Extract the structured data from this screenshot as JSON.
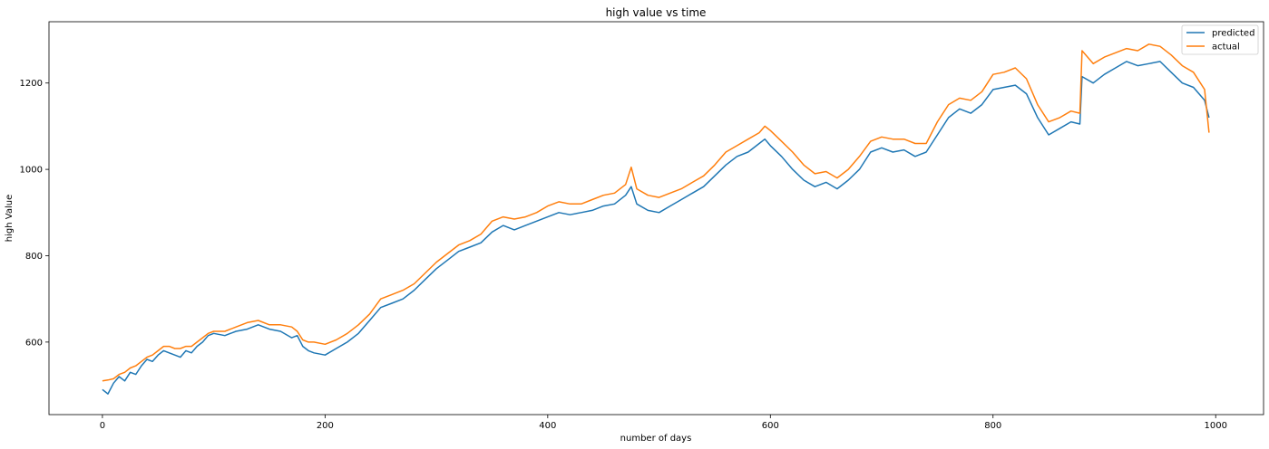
{
  "chart_data": {
    "type": "line",
    "title": "high value vs time",
    "xlabel": "number of days",
    "ylabel": "high Value",
    "xlim": [
      -48,
      1043
    ],
    "ylim": [
      432,
      1342
    ],
    "xticks": [
      0,
      200,
      400,
      600,
      800,
      1000
    ],
    "yticks": [
      600,
      800,
      1000,
      1200
    ],
    "grid": false,
    "legend_position": "top-right",
    "series": [
      {
        "name": "predicted",
        "color": "#1f77b4",
        "points": [
          [
            0,
            490
          ],
          [
            5,
            480
          ],
          [
            10,
            505
          ],
          [
            15,
            520
          ],
          [
            20,
            510
          ],
          [
            25,
            530
          ],
          [
            30,
            525
          ],
          [
            35,
            545
          ],
          [
            40,
            560
          ],
          [
            45,
            555
          ],
          [
            50,
            570
          ],
          [
            55,
            580
          ],
          [
            60,
            575
          ],
          [
            65,
            570
          ],
          [
            70,
            565
          ],
          [
            75,
            580
          ],
          [
            80,
            575
          ],
          [
            85,
            590
          ],
          [
            90,
            600
          ],
          [
            95,
            615
          ],
          [
            100,
            620
          ],
          [
            110,
            615
          ],
          [
            120,
            625
          ],
          [
            130,
            630
          ],
          [
            140,
            640
          ],
          [
            150,
            630
          ],
          [
            160,
            625
          ],
          [
            170,
            610
          ],
          [
            175,
            615
          ],
          [
            180,
            590
          ],
          [
            185,
            580
          ],
          [
            190,
            575
          ],
          [
            200,
            570
          ],
          [
            210,
            585
          ],
          [
            220,
            600
          ],
          [
            230,
            620
          ],
          [
            240,
            650
          ],
          [
            250,
            680
          ],
          [
            260,
            690
          ],
          [
            270,
            700
          ],
          [
            280,
            720
          ],
          [
            290,
            745
          ],
          [
            300,
            770
          ],
          [
            310,
            790
          ],
          [
            320,
            810
          ],
          [
            330,
            820
          ],
          [
            340,
            830
          ],
          [
            350,
            855
          ],
          [
            360,
            870
          ],
          [
            370,
            860
          ],
          [
            380,
            870
          ],
          [
            390,
            880
          ],
          [
            400,
            890
          ],
          [
            410,
            900
          ],
          [
            420,
            895
          ],
          [
            430,
            900
          ],
          [
            440,
            905
          ],
          [
            450,
            915
          ],
          [
            460,
            920
          ],
          [
            470,
            940
          ],
          [
            475,
            960
          ],
          [
            480,
            920
          ],
          [
            490,
            905
          ],
          [
            500,
            900
          ],
          [
            510,
            915
          ],
          [
            520,
            930
          ],
          [
            530,
            945
          ],
          [
            540,
            960
          ],
          [
            550,
            985
          ],
          [
            560,
            1010
          ],
          [
            570,
            1030
          ],
          [
            580,
            1040
          ],
          [
            590,
            1060
          ],
          [
            595,
            1070
          ],
          [
            600,
            1055
          ],
          [
            610,
            1030
          ],
          [
            620,
            1000
          ],
          [
            630,
            975
          ],
          [
            640,
            960
          ],
          [
            650,
            970
          ],
          [
            660,
            955
          ],
          [
            670,
            975
          ],
          [
            680,
            1000
          ],
          [
            690,
            1040
          ],
          [
            700,
            1050
          ],
          [
            710,
            1040
          ],
          [
            720,
            1045
          ],
          [
            730,
            1030
          ],
          [
            740,
            1040
          ],
          [
            750,
            1080
          ],
          [
            760,
            1120
          ],
          [
            770,
            1140
          ],
          [
            780,
            1130
          ],
          [
            790,
            1150
          ],
          [
            800,
            1185
          ],
          [
            810,
            1190
          ],
          [
            820,
            1195
          ],
          [
            830,
            1175
          ],
          [
            840,
            1120
          ],
          [
            850,
            1080
          ],
          [
            860,
            1095
          ],
          [
            870,
            1110
          ],
          [
            878,
            1105
          ],
          [
            880,
            1215
          ],
          [
            890,
            1200
          ],
          [
            900,
            1220
          ],
          [
            910,
            1235
          ],
          [
            920,
            1250
          ],
          [
            930,
            1240
          ],
          [
            940,
            1245
          ],
          [
            950,
            1250
          ],
          [
            960,
            1225
          ],
          [
            970,
            1200
          ],
          [
            980,
            1190
          ],
          [
            990,
            1160
          ],
          [
            994,
            1120
          ]
        ]
      },
      {
        "name": "actual",
        "color": "#ff7f0e",
        "points": [
          [
            0,
            510
          ],
          [
            5,
            512
          ],
          [
            10,
            515
          ],
          [
            15,
            525
          ],
          [
            20,
            530
          ],
          [
            25,
            540
          ],
          [
            30,
            545
          ],
          [
            35,
            555
          ],
          [
            40,
            565
          ],
          [
            45,
            570
          ],
          [
            50,
            580
          ],
          [
            55,
            590
          ],
          [
            60,
            590
          ],
          [
            65,
            585
          ],
          [
            70,
            585
          ],
          [
            75,
            590
          ],
          [
            80,
            590
          ],
          [
            85,
            600
          ],
          [
            90,
            610
          ],
          [
            95,
            620
          ],
          [
            100,
            625
          ],
          [
            110,
            625
          ],
          [
            120,
            635
          ],
          [
            130,
            645
          ],
          [
            140,
            650
          ],
          [
            150,
            640
          ],
          [
            160,
            640
          ],
          [
            170,
            635
          ],
          [
            175,
            625
          ],
          [
            180,
            605
          ],
          [
            185,
            600
          ],
          [
            190,
            600
          ],
          [
            200,
            595
          ],
          [
            210,
            605
          ],
          [
            220,
            620
          ],
          [
            230,
            640
          ],
          [
            240,
            665
          ],
          [
            250,
            700
          ],
          [
            260,
            710
          ],
          [
            270,
            720
          ],
          [
            280,
            735
          ],
          [
            290,
            760
          ],
          [
            300,
            785
          ],
          [
            310,
            805
          ],
          [
            320,
            825
          ],
          [
            330,
            835
          ],
          [
            340,
            850
          ],
          [
            350,
            880
          ],
          [
            360,
            890
          ],
          [
            370,
            885
          ],
          [
            380,
            890
          ],
          [
            390,
            900
          ],
          [
            400,
            915
          ],
          [
            410,
            925
          ],
          [
            420,
            920
          ],
          [
            430,
            920
          ],
          [
            440,
            930
          ],
          [
            450,
            940
          ],
          [
            460,
            945
          ],
          [
            470,
            965
          ],
          [
            475,
            1005
          ],
          [
            480,
            955
          ],
          [
            490,
            940
          ],
          [
            500,
            935
          ],
          [
            510,
            945
          ],
          [
            520,
            955
          ],
          [
            530,
            970
          ],
          [
            540,
            985
          ],
          [
            550,
            1010
          ],
          [
            560,
            1040
          ],
          [
            570,
            1055
          ],
          [
            580,
            1070
          ],
          [
            590,
            1085
          ],
          [
            595,
            1100
          ],
          [
            600,
            1090
          ],
          [
            610,
            1065
          ],
          [
            620,
            1040
          ],
          [
            630,
            1010
          ],
          [
            640,
            990
          ],
          [
            650,
            995
          ],
          [
            660,
            980
          ],
          [
            670,
            1000
          ],
          [
            680,
            1030
          ],
          [
            690,
            1065
          ],
          [
            700,
            1075
          ],
          [
            710,
            1070
          ],
          [
            720,
            1070
          ],
          [
            730,
            1060
          ],
          [
            740,
            1060
          ],
          [
            750,
            1110
          ],
          [
            760,
            1150
          ],
          [
            770,
            1165
          ],
          [
            780,
            1160
          ],
          [
            790,
            1180
          ],
          [
            800,
            1220
          ],
          [
            810,
            1225
          ],
          [
            820,
            1235
          ],
          [
            830,
            1210
          ],
          [
            840,
            1150
          ],
          [
            850,
            1110
          ],
          [
            860,
            1120
          ],
          [
            870,
            1135
          ],
          [
            878,
            1130
          ],
          [
            880,
            1275
          ],
          [
            890,
            1245
          ],
          [
            900,
            1260
          ],
          [
            910,
            1270
          ],
          [
            920,
            1280
          ],
          [
            930,
            1275
          ],
          [
            940,
            1290
          ],
          [
            950,
            1285
          ],
          [
            960,
            1265
          ],
          [
            970,
            1240
          ],
          [
            980,
            1225
          ],
          [
            990,
            1185
          ],
          [
            994,
            1085
          ]
        ]
      }
    ]
  }
}
